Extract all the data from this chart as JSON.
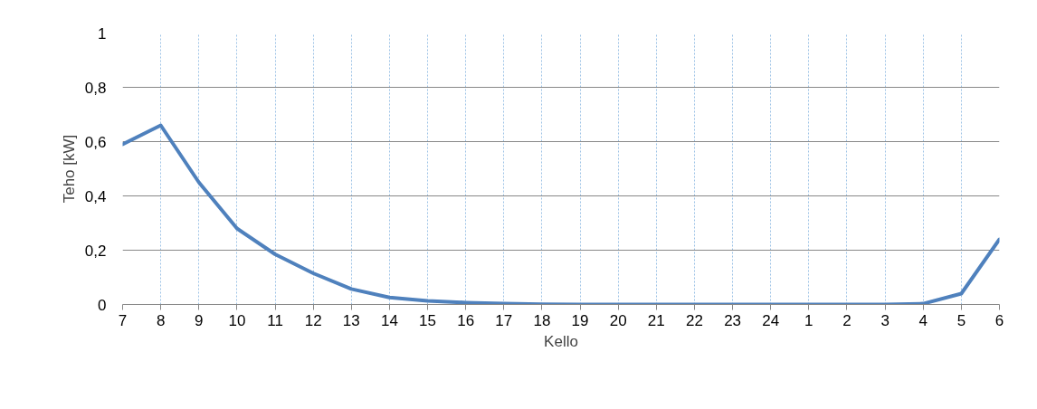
{
  "chart_data": {
    "type": "line",
    "xlabel": "Kello",
    "ylabel": "Teho [kW]",
    "categories": [
      "7",
      "8",
      "9",
      "10",
      "11",
      "12",
      "13",
      "14",
      "15",
      "16",
      "17",
      "18",
      "19",
      "20",
      "21",
      "22",
      "23",
      "24",
      "1",
      "2",
      "3",
      "4",
      "5",
      "6"
    ],
    "values": [
      0.59,
      0.66,
      0.45,
      0.28,
      0.185,
      0.115,
      0.057,
      0.026,
      0.013,
      0.007,
      0.003,
      0.001,
      0,
      0,
      0,
      0,
      0,
      0,
      0,
      0,
      0,
      0.003,
      0.04,
      0.24
    ],
    "color": "#4f81bd",
    "ylim": [
      0,
      1
    ],
    "yticks": [
      0,
      {
        "value": 0.2,
        "label": "0,2"
      },
      {
        "value": 0.4,
        "label": "0,4"
      },
      {
        "value": 0.6,
        "label": "0,6"
      },
      {
        "value": 0.8,
        "label": "0,8"
      },
      1
    ],
    "grid": true
  }
}
